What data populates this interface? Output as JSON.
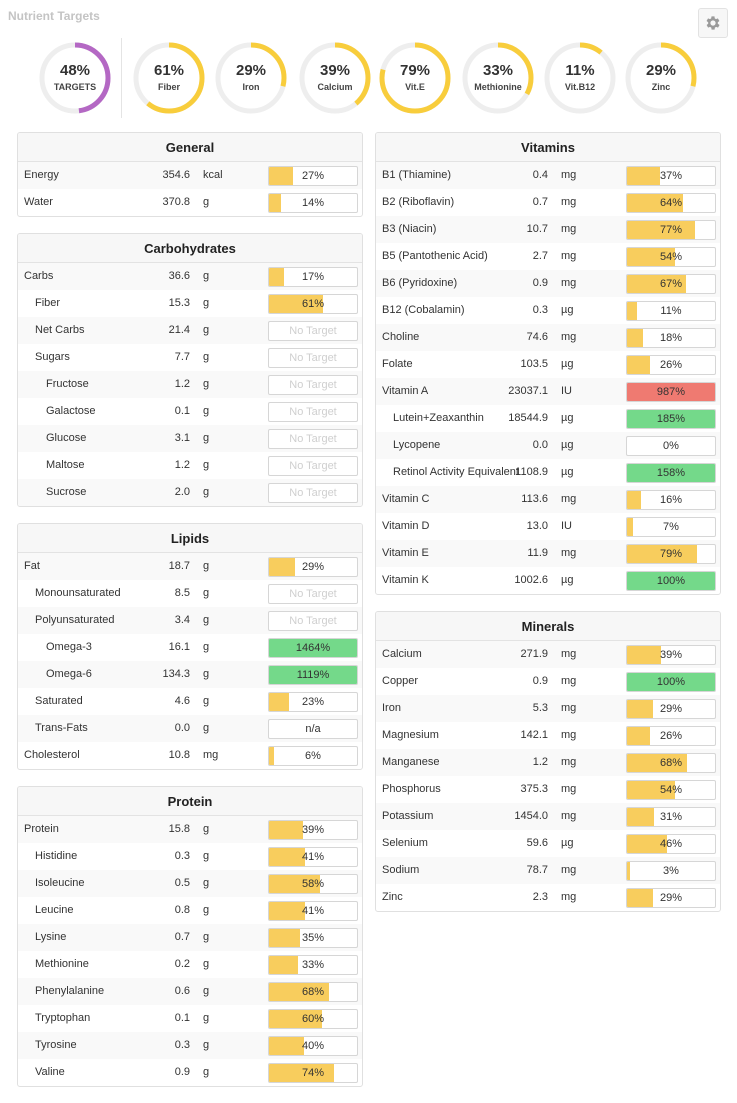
{
  "title": "Nutrient Targets",
  "colors": {
    "yellow": "#f8cd5d",
    "green": "#74d98a",
    "red": "#ef7a71",
    "purple": "#b468c4",
    "track": "#eeeeee"
  },
  "rings": [
    {
      "pct": 48,
      "label": "48%",
      "name": "TARGETS",
      "color": "#b468c4"
    },
    {
      "pct": 61,
      "label": "61%",
      "name": "Fiber",
      "color": "#f8cd3c"
    },
    {
      "pct": 29,
      "label": "29%",
      "name": "Iron",
      "color": "#f8cd3c"
    },
    {
      "pct": 39,
      "label": "39%",
      "name": "Calcium",
      "color": "#f8cd3c"
    },
    {
      "pct": 79,
      "label": "79%",
      "name": "Vit.E",
      "color": "#f8cd3c"
    },
    {
      "pct": 33,
      "label": "33%",
      "name": "Methionine",
      "color": "#f8cd3c"
    },
    {
      "pct": 11,
      "label": "11%",
      "name": "Vit.B12",
      "color": "#f8cd3c"
    },
    {
      "pct": 29,
      "label": "29%",
      "name": "Zinc",
      "color": "#f8cd3c"
    }
  ],
  "left_panels": [
    {
      "title": "General",
      "rows": [
        {
          "name": "Energy",
          "amount": "354.6",
          "unit": "kcal",
          "pct": 27,
          "label": "27%",
          "level": 0
        },
        {
          "name": "Water",
          "amount": "370.8",
          "unit": "g",
          "pct": 14,
          "label": "14%",
          "level": 0
        }
      ]
    },
    {
      "title": "Carbohydrates",
      "rows": [
        {
          "name": "Carbs",
          "amount": "36.6",
          "unit": "g",
          "pct": 17,
          "label": "17%",
          "level": 0
        },
        {
          "name": "Fiber",
          "amount": "15.3",
          "unit": "g",
          "pct": 61,
          "label": "61%",
          "level": 1
        },
        {
          "name": "Net Carbs",
          "amount": "21.4",
          "unit": "g",
          "pct": null,
          "label": "No Target",
          "level": 1
        },
        {
          "name": "Sugars",
          "amount": "7.7",
          "unit": "g",
          "pct": null,
          "label": "No Target",
          "level": 1
        },
        {
          "name": "Fructose",
          "amount": "1.2",
          "unit": "g",
          "pct": null,
          "label": "No Target",
          "level": 2
        },
        {
          "name": "Galactose",
          "amount": "0.1",
          "unit": "g",
          "pct": null,
          "label": "No Target",
          "level": 2
        },
        {
          "name": "Glucose",
          "amount": "3.1",
          "unit": "g",
          "pct": null,
          "label": "No Target",
          "level": 2
        },
        {
          "name": "Maltose",
          "amount": "1.2",
          "unit": "g",
          "pct": null,
          "label": "No Target",
          "level": 2
        },
        {
          "name": "Sucrose",
          "amount": "2.0",
          "unit": "g",
          "pct": null,
          "label": "No Target",
          "level": 2
        }
      ]
    },
    {
      "title": "Lipids",
      "rows": [
        {
          "name": "Fat",
          "amount": "18.7",
          "unit": "g",
          "pct": 29,
          "label": "29%",
          "level": 0
        },
        {
          "name": "Monounsaturated",
          "amount": "8.5",
          "unit": "g",
          "pct": null,
          "label": "No Target",
          "level": 1
        },
        {
          "name": "Polyunsaturated",
          "amount": "3.4",
          "unit": "g",
          "pct": null,
          "label": "No Target",
          "level": 1
        },
        {
          "name": "Omega-3",
          "amount": "16.1",
          "unit": "g",
          "pct": 1464,
          "label": "1464%",
          "level": 2,
          "color": "green"
        },
        {
          "name": "Omega-6",
          "amount": "134.3",
          "unit": "g",
          "pct": 1119,
          "label": "1119%",
          "level": 2,
          "color": "green"
        },
        {
          "name": "Saturated",
          "amount": "4.6",
          "unit": "g",
          "pct": 23,
          "label": "23%",
          "level": 1
        },
        {
          "name": "Trans-Fats",
          "amount": "0.0",
          "unit": "g",
          "pct": 0,
          "label": "n/a",
          "level": 1
        },
        {
          "name": "Cholesterol",
          "amount": "10.8",
          "unit": "mg",
          "pct": 6,
          "label": "6%",
          "level": 0
        }
      ]
    },
    {
      "title": "Protein",
      "rows": [
        {
          "name": "Protein",
          "amount": "15.8",
          "unit": "g",
          "pct": 39,
          "label": "39%",
          "level": 0
        },
        {
          "name": "Histidine",
          "amount": "0.3",
          "unit": "g",
          "pct": 41,
          "label": "41%",
          "level": 1
        },
        {
          "name": "Isoleucine",
          "amount": "0.5",
          "unit": "g",
          "pct": 58,
          "label": "58%",
          "level": 1
        },
        {
          "name": "Leucine",
          "amount": "0.8",
          "unit": "g",
          "pct": 41,
          "label": "41%",
          "level": 1
        },
        {
          "name": "Lysine",
          "amount": "0.7",
          "unit": "g",
          "pct": 35,
          "label": "35%",
          "level": 1
        },
        {
          "name": "Methionine",
          "amount": "0.2",
          "unit": "g",
          "pct": 33,
          "label": "33%",
          "level": 1
        },
        {
          "name": "Phenylalanine",
          "amount": "0.6",
          "unit": "g",
          "pct": 68,
          "label": "68%",
          "level": 1
        },
        {
          "name": "Tryptophan",
          "amount": "0.1",
          "unit": "g",
          "pct": 60,
          "label": "60%",
          "level": 1
        },
        {
          "name": "Tyrosine",
          "amount": "0.3",
          "unit": "g",
          "pct": 40,
          "label": "40%",
          "level": 1
        },
        {
          "name": "Valine",
          "amount": "0.9",
          "unit": "g",
          "pct": 74,
          "label": "74%",
          "level": 1
        }
      ]
    }
  ],
  "right_panels": [
    {
      "title": "Vitamins",
      "rows": [
        {
          "name": "B1 (Thiamine)",
          "amount": "0.4",
          "unit": "mg",
          "pct": 37,
          "label": "37%",
          "level": 0
        },
        {
          "name": "B2 (Riboflavin)",
          "amount": "0.7",
          "unit": "mg",
          "pct": 64,
          "label": "64%",
          "level": 0
        },
        {
          "name": "B3 (Niacin)",
          "amount": "10.7",
          "unit": "mg",
          "pct": 77,
          "label": "77%",
          "level": 0
        },
        {
          "name": "B5 (Pantothenic Acid)",
          "amount": "2.7",
          "unit": "mg",
          "pct": 54,
          "label": "54%",
          "level": 0
        },
        {
          "name": "B6 (Pyridoxine)",
          "amount": "0.9",
          "unit": "mg",
          "pct": 67,
          "label": "67%",
          "level": 0
        },
        {
          "name": "B12 (Cobalamin)",
          "amount": "0.3",
          "unit": "µg",
          "pct": 11,
          "label": "11%",
          "level": 0
        },
        {
          "name": "Choline",
          "amount": "74.6",
          "unit": "mg",
          "pct": 18,
          "label": "18%",
          "level": 0
        },
        {
          "name": "Folate",
          "amount": "103.5",
          "unit": "µg",
          "pct": 26,
          "label": "26%",
          "level": 0
        },
        {
          "name": "Vitamin A",
          "amount": "23037.1",
          "unit": "IU",
          "pct": 987,
          "label": "987%",
          "level": 0,
          "color": "red"
        },
        {
          "name": "Lutein+Zeaxanthin",
          "amount": "18544.9",
          "unit": "µg",
          "pct": 185,
          "label": "185%",
          "level": 1,
          "color": "green"
        },
        {
          "name": "Lycopene",
          "amount": "0.0",
          "unit": "µg",
          "pct": 0,
          "label": "0%",
          "level": 1
        },
        {
          "name": "Retinol Activity Equivalent",
          "amount": "1108.9",
          "unit": "µg",
          "pct": 158,
          "label": "158%",
          "level": 1,
          "color": "green"
        },
        {
          "name": "Vitamin C",
          "amount": "113.6",
          "unit": "mg",
          "pct": 16,
          "label": "16%",
          "level": 0
        },
        {
          "name": "Vitamin D",
          "amount": "13.0",
          "unit": "IU",
          "pct": 7,
          "label": "7%",
          "level": 0
        },
        {
          "name": "Vitamin E",
          "amount": "11.9",
          "unit": "mg",
          "pct": 79,
          "label": "79%",
          "level": 0
        },
        {
          "name": "Vitamin K",
          "amount": "1002.6",
          "unit": "µg",
          "pct": 100,
          "label": "100%",
          "level": 0,
          "color": "green"
        }
      ]
    },
    {
      "title": "Minerals",
      "rows": [
        {
          "name": "Calcium",
          "amount": "271.9",
          "unit": "mg",
          "pct": 39,
          "label": "39%",
          "level": 0
        },
        {
          "name": "Copper",
          "amount": "0.9",
          "unit": "mg",
          "pct": 100,
          "label": "100%",
          "level": 0,
          "color": "green"
        },
        {
          "name": "Iron",
          "amount": "5.3",
          "unit": "mg",
          "pct": 29,
          "label": "29%",
          "level": 0
        },
        {
          "name": "Magnesium",
          "amount": "142.1",
          "unit": "mg",
          "pct": 26,
          "label": "26%",
          "level": 0
        },
        {
          "name": "Manganese",
          "amount": "1.2",
          "unit": "mg",
          "pct": 68,
          "label": "68%",
          "level": 0
        },
        {
          "name": "Phosphorus",
          "amount": "375.3",
          "unit": "mg",
          "pct": 54,
          "label": "54%",
          "level": 0
        },
        {
          "name": "Potassium",
          "amount": "1454.0",
          "unit": "mg",
          "pct": 31,
          "label": "31%",
          "level": 0
        },
        {
          "name": "Selenium",
          "amount": "59.6",
          "unit": "µg",
          "pct": 46,
          "label": "46%",
          "level": 0
        },
        {
          "name": "Sodium",
          "amount": "78.7",
          "unit": "mg",
          "pct": 3,
          "label": "3%",
          "level": 0
        },
        {
          "name": "Zinc",
          "amount": "2.3",
          "unit": "mg",
          "pct": 29,
          "label": "29%",
          "level": 0
        }
      ]
    }
  ]
}
